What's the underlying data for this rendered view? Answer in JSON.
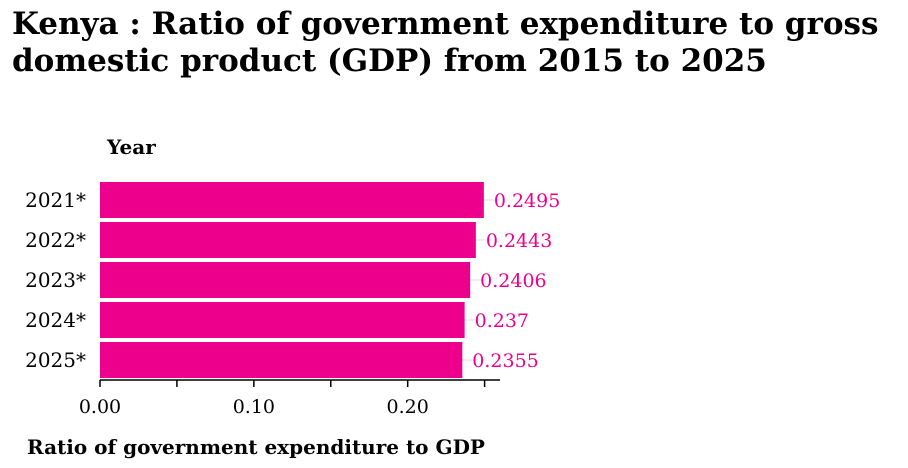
{
  "chart_data": {
    "type": "bar",
    "orientation": "horizontal",
    "title": "Kenya : Ratio of government expenditure to gross domestic product (GDP) from 2015 to 2025",
    "ylabel": "Year",
    "xlabel": "Ratio of government expenditure to GDP",
    "categories": [
      "2021*",
      "2022*",
      "2023*",
      "2024*",
      "2025*"
    ],
    "values": [
      0.2495,
      0.2443,
      0.2406,
      0.237,
      0.2355
    ],
    "data_labels": [
      "0.2495",
      "0.2443",
      "0.2406",
      "0.237",
      "0.2355"
    ],
    "xlim": [
      0,
      0.26
    ],
    "x_ticks": [
      {
        "value": 0,
        "label": "0.00"
      },
      {
        "value": 0.05,
        "label": ""
      },
      {
        "value": 0.1,
        "label": "0.10"
      },
      {
        "value": 0.15,
        "label": ""
      },
      {
        "value": 0.2,
        "label": "0.20"
      },
      {
        "value": 0.25,
        "label": ""
      }
    ],
    "grid": false,
    "legend": "none",
    "bar_color": "#ec008c",
    "label_color": "#ec008c"
  }
}
